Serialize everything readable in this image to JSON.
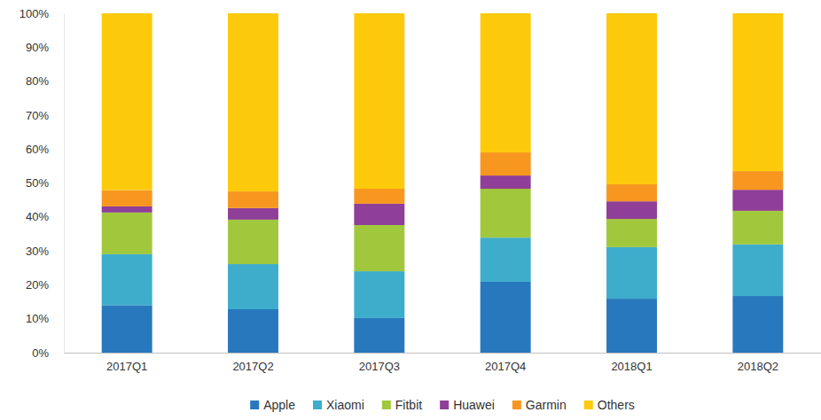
{
  "chart_data": {
    "type": "bar",
    "stacked": true,
    "grid": false,
    "legend": "bottom",
    "categories": [
      "2017Q1",
      "2017Q2",
      "2017Q3",
      "2017Q4",
      "2018Q1",
      "2018Q2"
    ],
    "ylim": [
      0,
      100
    ],
    "yticks": [
      {
        "value": 0,
        "label": "0%"
      },
      {
        "value": 10,
        "label": "10%"
      },
      {
        "value": 20,
        "label": "20%"
      },
      {
        "value": 30,
        "label": "30%"
      },
      {
        "value": 40,
        "label": "40%"
      },
      {
        "value": 50,
        "label": "50%"
      },
      {
        "value": 60,
        "label": "60%"
      },
      {
        "value": 70,
        "label": "70%"
      },
      {
        "value": 80,
        "label": "80%"
      },
      {
        "value": 90,
        "label": "90%"
      },
      {
        "value": 100,
        "label": "100%"
      }
    ],
    "series": [
      {
        "name": "Apple",
        "color": "#2878bd",
        "values": [
          14,
          12.8,
          10.2,
          20.9,
          15.9,
          16.7
        ]
      },
      {
        "name": "Xiaomi",
        "color": "#3eadcb",
        "values": [
          15,
          13.3,
          13.8,
          13,
          15.2,
          15.2
        ]
      },
      {
        "name": "Fitbit",
        "color": "#a1c83c",
        "values": [
          12.3,
          13.1,
          13.6,
          14.4,
          8.3,
          9.9
        ]
      },
      {
        "name": "Huawei",
        "color": "#8f3f97",
        "values": [
          1.8,
          3.4,
          6.3,
          3.9,
          5.2,
          6.2
        ]
      },
      {
        "name": "Garmin",
        "color": "#f7971f",
        "values": [
          4.8,
          4.9,
          4.4,
          6.8,
          5,
          5.5
        ]
      },
      {
        "name": "Others",
        "color": "#fdca0b",
        "values": [
          52.1,
          52.5,
          51.7,
          41,
          50.4,
          46.5
        ]
      }
    ]
  }
}
